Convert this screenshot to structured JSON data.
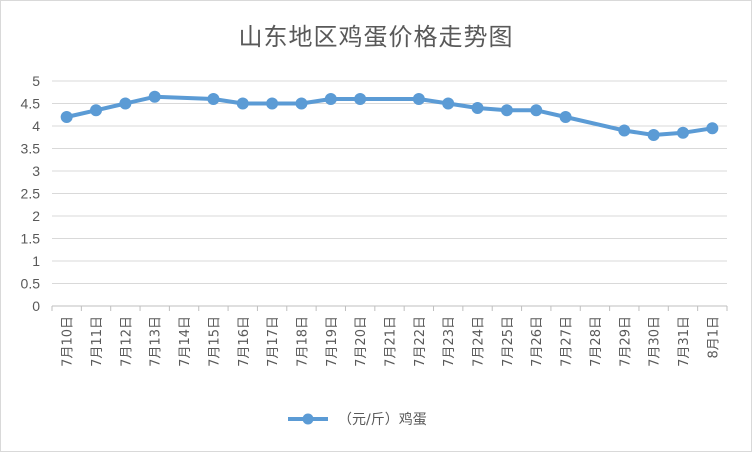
{
  "chart_data": {
    "type": "line",
    "title": "山东地区鸡蛋价格走势图",
    "xlabel": "",
    "ylabel": "",
    "ylim": [
      0,
      5
    ],
    "yticks": [
      "0",
      "0.5",
      "1",
      "1.5",
      "2",
      "2.5",
      "3",
      "3.5",
      "4",
      "4.5",
      "5"
    ],
    "grid": true,
    "legend_position": "bottom",
    "categories": [
      "7月10日",
      "7月11日",
      "7月12日",
      "7月13日",
      "7月14日",
      "7月15日",
      "7月16日",
      "7月17日",
      "7月18日",
      "7月19日",
      "7月20日",
      "7月21日",
      "7月22日",
      "7月23日",
      "7月24日",
      "7月25日",
      "7月26日",
      "7月27日",
      "7月28日",
      "7月29日",
      "7月30日",
      "7月31日",
      "8月1日"
    ],
    "series": [
      {
        "name": "（元/斤）鸡蛋",
        "color": "#5b9bd5",
        "values": [
          4.2,
          4.35,
          4.5,
          4.65,
          null,
          4.6,
          4.5,
          4.5,
          4.5,
          4.6,
          4.6,
          null,
          4.6,
          4.5,
          4.4,
          4.35,
          4.35,
          4.2,
          null,
          3.9,
          3.8,
          3.85,
          3.95
        ]
      }
    ]
  }
}
